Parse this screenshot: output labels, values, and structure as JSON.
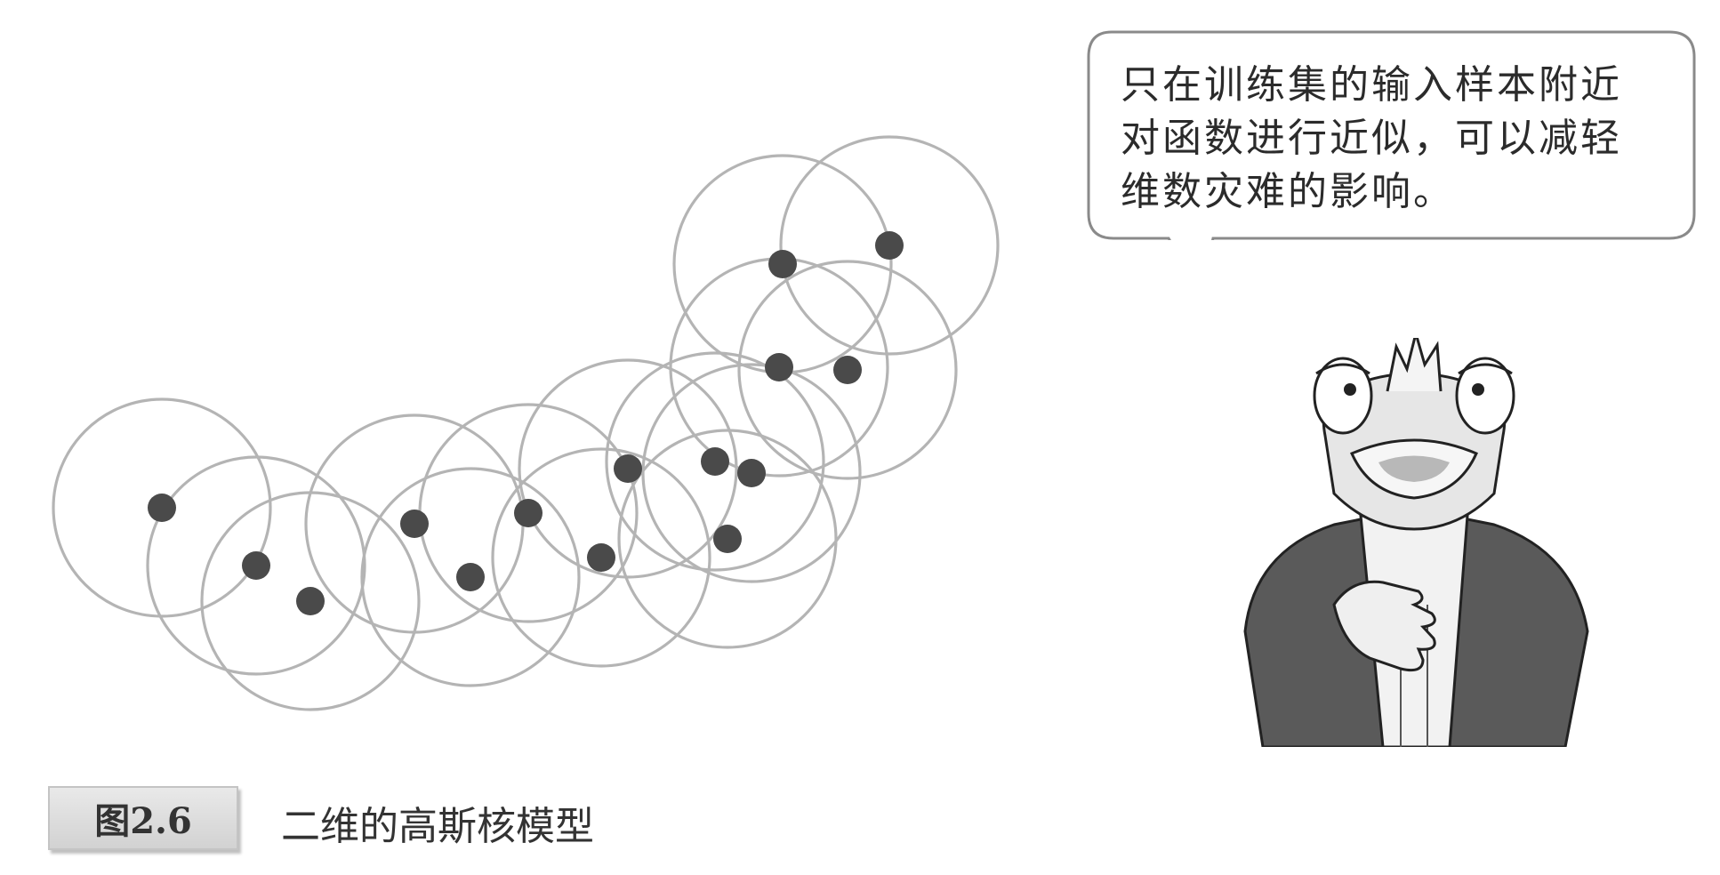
{
  "bubble": {
    "text": "只在训练集的输入样本附近\n对函数进行近似，可以减轻\n维数灾难的影响。"
  },
  "caption": {
    "label": "图2.6",
    "text": "二维的高斯核模型"
  },
  "colors": {
    "circle_stroke": "#b4b4b4",
    "point_fill": "#4a4a4a",
    "caption_bg": "#dcdcdc"
  },
  "illustration": {
    "icon": "frog-character"
  }
}
